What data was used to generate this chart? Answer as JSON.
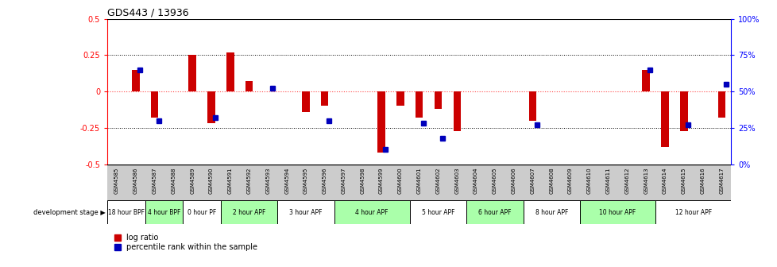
{
  "title": "GDS443 / 13936",
  "samples": [
    "GSM4585",
    "GSM4586",
    "GSM4587",
    "GSM4588",
    "GSM4589",
    "GSM4590",
    "GSM4591",
    "GSM4592",
    "GSM4593",
    "GSM4594",
    "GSM4595",
    "GSM4596",
    "GSM4597",
    "GSM4598",
    "GSM4599",
    "GSM4600",
    "GSM4601",
    "GSM4602",
    "GSM4603",
    "GSM4604",
    "GSM4605",
    "GSM4606",
    "GSM4607",
    "GSM4608",
    "GSM4609",
    "GSM4610",
    "GSM4611",
    "GSM4612",
    "GSM4613",
    "GSM4614",
    "GSM4615",
    "GSM4616",
    "GSM4617"
  ],
  "log_ratio": [
    0.0,
    0.15,
    -0.18,
    0.0,
    0.25,
    -0.22,
    0.27,
    0.07,
    0.0,
    0.0,
    -0.14,
    -0.1,
    0.0,
    0.0,
    -0.42,
    -0.1,
    -0.18,
    -0.12,
    -0.27,
    0.0,
    0.0,
    0.0,
    -0.2,
    0.0,
    0.0,
    0.0,
    0.0,
    0.0,
    0.15,
    -0.38,
    -0.27,
    0.0,
    -0.18
  ],
  "percentile_raw": [
    null,
    65,
    30,
    null,
    null,
    32,
    null,
    null,
    52,
    null,
    null,
    30,
    null,
    null,
    10,
    null,
    28,
    18,
    null,
    null,
    null,
    null,
    27,
    null,
    null,
    null,
    null,
    null,
    65,
    null,
    27,
    null,
    55
  ],
  "stages": [
    {
      "label": "18 hour BPF",
      "start": 0,
      "end": 2,
      "color": "#ffffff"
    },
    {
      "label": "4 hour BPF",
      "start": 2,
      "end": 4,
      "color": "#aaffaa"
    },
    {
      "label": "0 hour PF",
      "start": 4,
      "end": 6,
      "color": "#ffffff"
    },
    {
      "label": "2 hour APF",
      "start": 6,
      "end": 9,
      "color": "#aaffaa"
    },
    {
      "label": "3 hour APF",
      "start": 9,
      "end": 12,
      "color": "#ffffff"
    },
    {
      "label": "4 hour APF",
      "start": 12,
      "end": 16,
      "color": "#aaffaa"
    },
    {
      "label": "5 hour APF",
      "start": 16,
      "end": 19,
      "color": "#ffffff"
    },
    {
      "label": "6 hour APF",
      "start": 19,
      "end": 22,
      "color": "#aaffaa"
    },
    {
      "label": "8 hour APF",
      "start": 22,
      "end": 25,
      "color": "#ffffff"
    },
    {
      "label": "10 hour APF",
      "start": 25,
      "end": 29,
      "color": "#aaffaa"
    },
    {
      "label": "12 hour APF",
      "start": 29,
      "end": 33,
      "color": "#ffffff"
    }
  ],
  "bar_color_red": "#cc0000",
  "bar_color_blue": "#0000bb",
  "zero_line_color": "#ff4444",
  "bg_color": "#ffffff",
  "gray_bg": "#cccccc"
}
